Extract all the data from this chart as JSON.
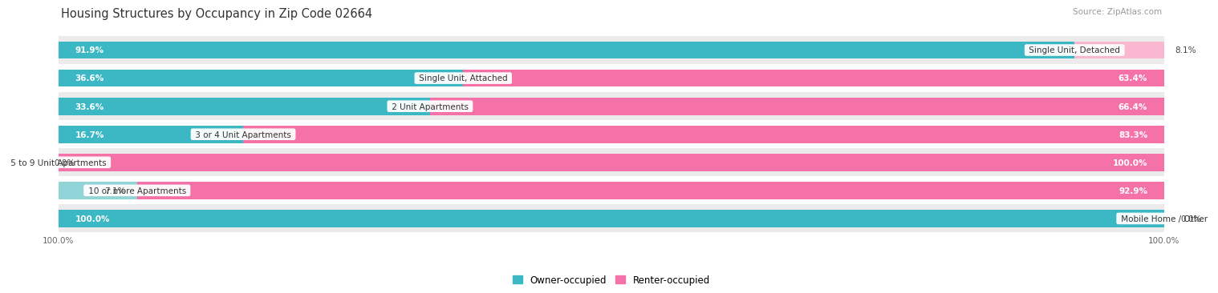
{
  "title": "Housing Structures by Occupancy in Zip Code 02664",
  "source": "Source: ZipAtlas.com",
  "categories": [
    "Single Unit, Detached",
    "Single Unit, Attached",
    "2 Unit Apartments",
    "3 or 4 Unit Apartments",
    "5 to 9 Unit Apartments",
    "10 or more Apartments",
    "Mobile Home / Other"
  ],
  "owner_pct": [
    91.9,
    36.6,
    33.6,
    16.7,
    0.0,
    7.1,
    100.0
  ],
  "renter_pct": [
    8.1,
    63.4,
    66.4,
    83.3,
    100.0,
    92.9,
    0.0
  ],
  "owner_color_strong": "#3BB8C3",
  "owner_color_light": "#90D4D8",
  "renter_color_strong": "#F472A8",
  "renter_color_light": "#F9B8D0",
  "row_bg_light": "#EBEBEB",
  "row_bg_white": "#FFFFFF",
  "title_fontsize": 10.5,
  "source_fontsize": 7.5,
  "cat_label_fontsize": 7.5,
  "bar_label_fontsize": 7.5,
  "axis_tick_fontsize": 7.5,
  "legend_fontsize": 8.5
}
